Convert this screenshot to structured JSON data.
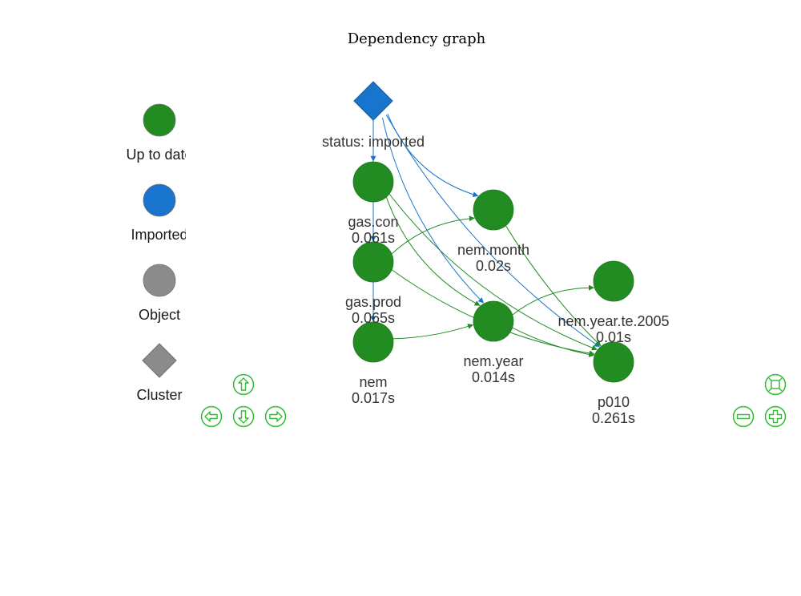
{
  "title": "Dependency graph",
  "legend": [
    {
      "shape": "dot",
      "color": "#228b22",
      "label": "Up to date"
    },
    {
      "shape": "dot",
      "color": "#1874cd",
      "label": "Imported"
    },
    {
      "shape": "dot",
      "color": "#8b8b8b",
      "label": "Object"
    },
    {
      "shape": "diamond",
      "color": "#8b8b8b",
      "label": "Cluster"
    }
  ],
  "nodes": [
    {
      "id": "status",
      "shape": "diamond",
      "color": "#1874cd",
      "label": "status: imported",
      "time": ""
    },
    {
      "id": "gas_con",
      "shape": "dot",
      "color": "#228b22",
      "label": "gas.con",
      "time": "0.061s"
    },
    {
      "id": "gas_prod",
      "shape": "dot",
      "color": "#228b22",
      "label": "gas.prod",
      "time": "0.065s"
    },
    {
      "id": "nem",
      "shape": "dot",
      "color": "#228b22",
      "label": "nem",
      "time": "0.017s"
    },
    {
      "id": "nem_month",
      "shape": "dot",
      "color": "#228b22",
      "label": "nem.month",
      "time": "0.02s"
    },
    {
      "id": "nem_year",
      "shape": "dot",
      "color": "#228b22",
      "label": "nem.year",
      "time": "0.014s"
    },
    {
      "id": "nem_year_te_2005",
      "shape": "dot",
      "color": "#228b22",
      "label": "nem.year.te.2005",
      "time": "0.01s"
    },
    {
      "id": "p010",
      "shape": "dot",
      "color": "#228b22",
      "label": "p010",
      "time": "0.261s"
    }
  ],
  "edges": [
    {
      "from": "status",
      "to": "gas_con",
      "color": "#1874cd"
    },
    {
      "from": "status",
      "to": "gas_prod",
      "color": "#1874cd"
    },
    {
      "from": "status",
      "to": "nem",
      "color": "#1874cd"
    },
    {
      "from": "status",
      "to": "nem_month",
      "color": "#1874cd"
    },
    {
      "from": "status",
      "to": "nem_year",
      "color": "#1874cd"
    },
    {
      "from": "status",
      "to": "p010",
      "color": "#1874cd"
    },
    {
      "from": "gas_con",
      "to": "nem_year",
      "color": "#228b22"
    },
    {
      "from": "gas_con",
      "to": "p010",
      "color": "#228b22"
    },
    {
      "from": "gas_prod",
      "to": "nem_month",
      "color": "#228b22"
    },
    {
      "from": "gas_prod",
      "to": "p010",
      "color": "#228b22"
    },
    {
      "from": "nem",
      "to": "nem_year",
      "color": "#228b22"
    },
    {
      "from": "nem_month",
      "to": "p010",
      "color": "#228b22"
    },
    {
      "from": "nem_year",
      "to": "nem_year_te_2005",
      "color": "#228b22"
    },
    {
      "from": "nem_year",
      "to": "p010",
      "color": "#228b22"
    }
  ],
  "controls": {
    "color": "#33bb33",
    "nav": [
      "up-arrow-icon",
      "left-arrow-icon",
      "down-arrow-icon",
      "right-arrow-icon"
    ],
    "zoom": [
      "zoom-extends-icon",
      "zoom-out-icon",
      "zoom-in-icon"
    ]
  }
}
